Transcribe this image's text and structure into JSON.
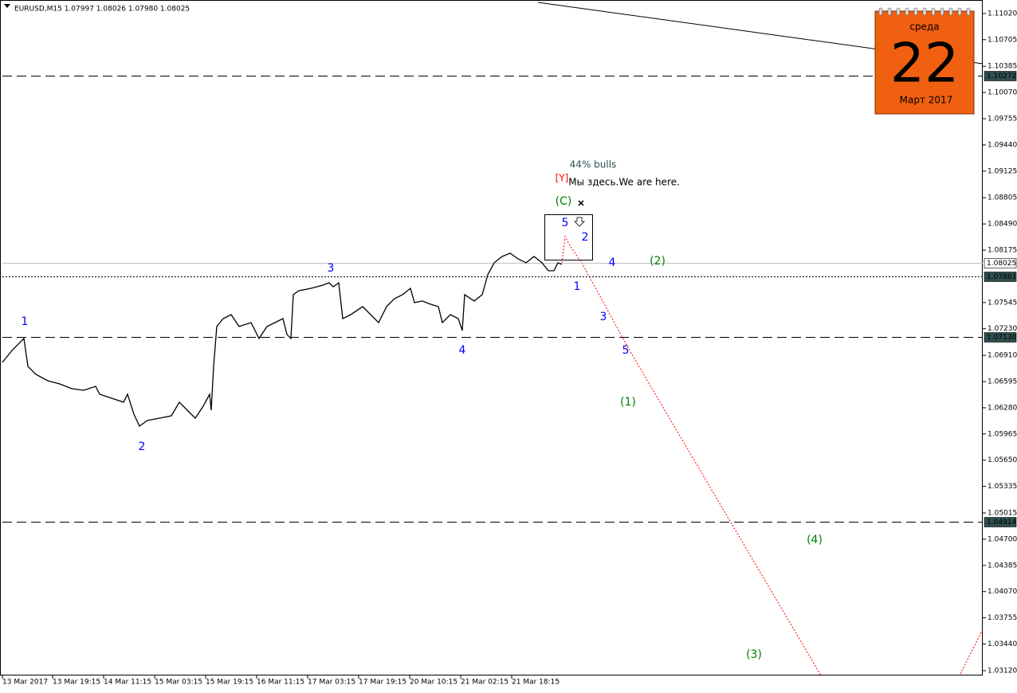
{
  "chart_data": {
    "type": "line",
    "title": "EURUSD,M15  1.07997 1.08026 1.07980 1.08025",
    "color": "#000000",
    "x": [
      0,
      12,
      27,
      32,
      42,
      57,
      72,
      87,
      102,
      117,
      122,
      137,
      152,
      157,
      165,
      172,
      182,
      197,
      212,
      222,
      232,
      242,
      252,
      260,
      262,
      265,
      269,
      277,
      287,
      297,
      312,
      322,
      332,
      342,
      352,
      357,
      362,
      365,
      372,
      387,
      402,
      410,
      415,
      422,
      427,
      437,
      452,
      462,
      472,
      482,
      492,
      502,
      512,
      517,
      527,
      537,
      547,
      552,
      562,
      572,
      577,
      580,
      592,
      602,
      609,
      617,
      627,
      637,
      647,
      657,
      667,
      677,
      685,
      692,
      697,
      702
    ],
    "values": [
      1.06825,
      1.06969,
      1.07113,
      1.06778,
      1.06682,
      1.06605,
      1.06567,
      1.0651,
      1.0649,
      1.06538,
      1.06443,
      1.06395,
      1.06347,
      1.06443,
      1.06203,
      1.0606,
      1.06127,
      1.06155,
      1.06184,
      1.06347,
      1.06251,
      1.06155,
      1.06299,
      1.06443,
      1.06251,
      1.06778,
      1.07257,
      1.07352,
      1.074,
      1.07257,
      1.07304,
      1.07113,
      1.07257,
      1.07304,
      1.07352,
      1.07161,
      1.07113,
      1.0764,
      1.07687,
      1.07716,
      1.07754,
      1.07783,
      1.07735,
      1.07783,
      1.07352,
      1.074,
      1.07496,
      1.074,
      1.07304,
      1.07496,
      1.07592,
      1.0764,
      1.07716,
      1.07544,
      1.07563,
      1.07525,
      1.07496,
      1.07304,
      1.074,
      1.07352,
      1.07209,
      1.0764,
      1.07563,
      1.0764,
      1.07879,
      1.08023,
      1.08099,
      1.08138,
      1.0807,
      1.08023,
      1.08099,
      1.08023,
      1.07927,
      1.07927,
      1.08023,
      1.08004
    ],
    "xlim": [
      0,
      1230
    ],
    "xticks": [
      {
        "value": 0,
        "label": "13 Mar 2017"
      },
      {
        "value": 63,
        "label": "13 Mar 19:15"
      },
      {
        "value": 127,
        "label": "14 Mar 11:15"
      },
      {
        "value": 191,
        "label": "15 Mar 03:15"
      },
      {
        "value": 255,
        "label": "15 Mar 19:15"
      },
      {
        "value": 319,
        "label": "16 Mar 11:15"
      },
      {
        "value": 383,
        "label": "17 Mar 03:15"
      },
      {
        "value": 447,
        "label": "17 Mar 19:15"
      },
      {
        "value": 511,
        "label": "20 Mar 10:15"
      },
      {
        "value": 575,
        "label": "21 Mar 02:15"
      },
      {
        "value": 639,
        "label": "21 Mar 18:15"
      }
    ],
    "ylim": [
      1.03062,
      1.11182
    ],
    "yticks": [
      {
        "value": 1.1102,
        "label": "1.11020"
      },
      {
        "value": 1.10705,
        "label": "1.10705"
      },
      {
        "value": 1.10385,
        "label": "1.10385"
      },
      {
        "value": 1.1007,
        "label": "1.10070"
      },
      {
        "value": 1.09755,
        "label": "1.09755"
      },
      {
        "value": 1.0944,
        "label": "1.09440"
      },
      {
        "value": 1.09125,
        "label": "1.09125"
      },
      {
        "value": 1.08805,
        "label": "1.08805"
      },
      {
        "value": 1.0849,
        "label": "1.08490"
      },
      {
        "value": 1.08175,
        "label": "1.08175"
      },
      {
        "value": 1.07545,
        "label": "1.07545"
      },
      {
        "value": 1.0723,
        "label": "1.07230"
      },
      {
        "value": 1.0691,
        "label": "1.06910"
      },
      {
        "value": 1.06595,
        "label": "1.06595"
      },
      {
        "value": 1.0628,
        "label": "1.06280"
      },
      {
        "value": 1.05965,
        "label": "1.05965"
      },
      {
        "value": 1.0565,
        "label": "1.05650"
      },
      {
        "value": 1.05335,
        "label": "1.05335"
      },
      {
        "value": 1.05015,
        "label": "1.05015"
      },
      {
        "value": 1.047,
        "label": "1.04700"
      },
      {
        "value": 1.04385,
        "label": "1.04385"
      },
      {
        "value": 1.0407,
        "label": "1.04070"
      },
      {
        "value": 1.03755,
        "label": "1.03755"
      },
      {
        "value": 1.0344,
        "label": "1.03440"
      },
      {
        "value": 1.0312,
        "label": "1.03120"
      }
    ],
    "levels": [
      {
        "value": 1.10272,
        "label": "1.10272",
        "style": "dashed"
      },
      {
        "value": 1.08025,
        "label": "1.08025",
        "style": "solid"
      },
      {
        "value": 1.07861,
        "label": "1.07861",
        "style": "dotted"
      },
      {
        "value": 1.0713,
        "label": "1.07130",
        "style": "dashed"
      },
      {
        "value": 1.04914,
        "label": "1.04914",
        "style": "dashed"
      }
    ],
    "annotations": [
      {
        "text": "1",
        "color": "#0000ff"
      },
      {
        "text": "2",
        "color": "#0000ff"
      },
      {
        "text": "3",
        "color": "#0000ff"
      },
      {
        "text": "4",
        "color": "#0000ff"
      },
      {
        "text": "5",
        "color": "#0000ff"
      },
      {
        "text": "2",
        "color": "#0000ff"
      },
      {
        "text": "4",
        "color": "#0000ff"
      },
      {
        "text": "1",
        "color": "#0000ff"
      },
      {
        "text": "3",
        "color": "#0000ff"
      },
      {
        "text": "5",
        "color": "#0000ff"
      },
      {
        "text": "(C)",
        "color": "#008000"
      },
      {
        "text": "(2)",
        "color": "#008000"
      },
      {
        "text": "(1)",
        "color": "#008000"
      },
      {
        "text": "(4)",
        "color": "#008000"
      },
      {
        "text": "(3)",
        "color": "#008000"
      },
      {
        "text": "44% bulls",
        "color": "#2f4f4f"
      },
      {
        "text": "[Y]",
        "color": "#ff0000"
      },
      {
        "text": "Мы здесь.We are here.",
        "color": "#000000"
      }
    ],
    "calendar": {
      "weekday": "среда",
      "day": "22",
      "month": "Март 2017"
    }
  }
}
